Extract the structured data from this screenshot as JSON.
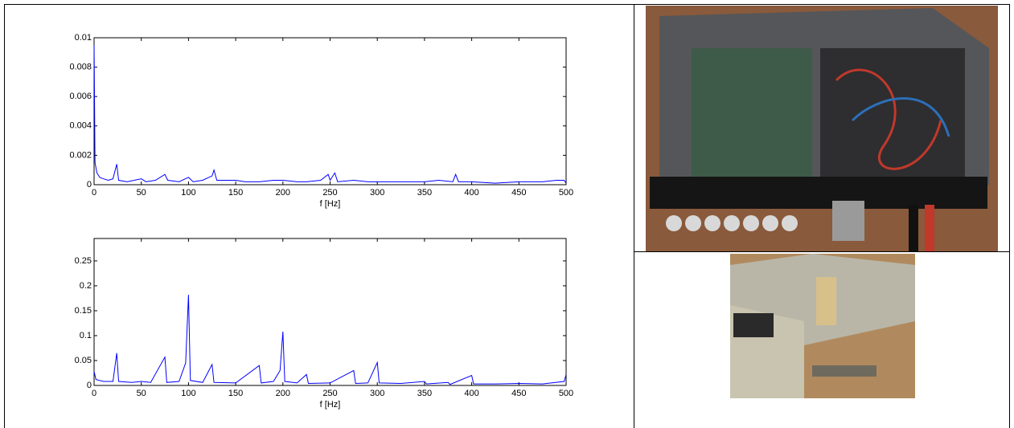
{
  "chart_data": [
    {
      "type": "line",
      "xlabel": "f [Hz]",
      "xlim": [
        0,
        500
      ],
      "ylim": [
        0,
        0.01
      ],
      "xticks": [
        0,
        50,
        100,
        150,
        200,
        250,
        300,
        350,
        400,
        450,
        500
      ],
      "yticks": [
        0,
        0.002,
        0.004,
        0.006,
        0.008,
        0.01
      ],
      "color": "#0000ff",
      "x": [
        0,
        1,
        3,
        6,
        10,
        15,
        20,
        24,
        26,
        35,
        50,
        55,
        65,
        75,
        78,
        90,
        100,
        105,
        115,
        125,
        127,
        130,
        150,
        160,
        175,
        190,
        200,
        215,
        225,
        240,
        248,
        250,
        255,
        258,
        275,
        290,
        300,
        325,
        350,
        365,
        380,
        383,
        386,
        400,
        425,
        450,
        475,
        490,
        498,
        500
      ],
      "values": [
        0.0095,
        0.0015,
        0.0008,
        0.0005,
        0.0004,
        0.0003,
        0.0004,
        0.0014,
        0.0003,
        0.0002,
        0.0004,
        0.0002,
        0.0003,
        0.0007,
        0.0003,
        0.0002,
        0.0005,
        0.0002,
        0.0003,
        0.0006,
        0.001,
        0.0003,
        0.0003,
        0.0002,
        0.0002,
        0.0003,
        0.0003,
        0.0002,
        0.0002,
        0.0003,
        0.0007,
        0.0003,
        0.0008,
        0.0002,
        0.0003,
        0.0002,
        0.0002,
        0.0002,
        0.0002,
        0.0003,
        0.0002,
        0.0007,
        0.0002,
        0.0002,
        0.0001,
        0.0002,
        0.0002,
        0.0003,
        0.0003,
        0.0001
      ]
    },
    {
      "type": "line",
      "xlabel": "f [Hz]",
      "xlim": [
        0,
        500
      ],
      "ylim": [
        0,
        0.295
      ],
      "xticks": [
        0,
        50,
        100,
        150,
        200,
        250,
        300,
        350,
        400,
        450,
        500
      ],
      "yticks": [
        0,
        0.05,
        0.1,
        0.15,
        0.2,
        0.25
      ],
      "color": "#0000ff",
      "x": [
        0,
        2,
        10,
        20,
        24,
        26,
        40,
        50,
        60,
        75,
        77,
        90,
        97,
        100,
        102,
        115,
        125,
        127,
        150,
        175,
        177,
        190,
        197,
        200,
        202,
        215,
        225,
        227,
        250,
        275,
        277,
        290,
        300,
        302,
        325,
        350,
        352,
        375,
        377,
        400,
        402,
        425,
        450,
        475,
        498,
        500
      ],
      "values": [
        0.028,
        0.012,
        0.008,
        0.008,
        0.065,
        0.008,
        0.006,
        0.008,
        0.006,
        0.057,
        0.006,
        0.008,
        0.045,
        0.182,
        0.01,
        0.006,
        0.042,
        0.006,
        0.005,
        0.04,
        0.005,
        0.008,
        0.03,
        0.108,
        0.008,
        0.005,
        0.022,
        0.004,
        0.005,
        0.03,
        0.004,
        0.005,
        0.046,
        0.005,
        0.004,
        0.008,
        0.003,
        0.006,
        0.002,
        0.02,
        0.003,
        0.003,
        0.004,
        0.003,
        0.008,
        0.022
      ]
    }
  ]
}
